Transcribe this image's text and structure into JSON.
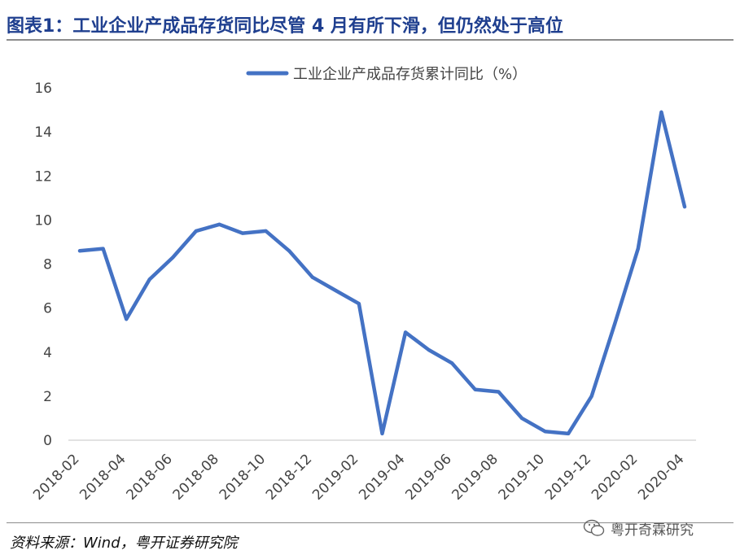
{
  "header": {
    "title": "图表1：工业企业产成品存货同比尽管 4 月有所下滑，但仍然处于高位"
  },
  "footer": {
    "source": "资料来源：Wind，粤开证券研究院",
    "watermark_text": "粤开奇霖研究",
    "watermark_icon": "wechat-icon"
  },
  "colors": {
    "line": "#4472c4",
    "title": "#1f3f8f",
    "axis": "#d9d9d9"
  },
  "chart_data": {
    "type": "line",
    "title": "",
    "xlabel": "",
    "ylabel": "",
    "legend_position": "top-center",
    "grid": false,
    "ylim": [
      0,
      16
    ],
    "yticks": [
      0,
      2,
      4,
      6,
      8,
      10,
      12,
      14,
      16
    ],
    "x": [
      "2018-02",
      "2018-03",
      "2018-04",
      "2018-05",
      "2018-06",
      "2018-07",
      "2018-08",
      "2018-09",
      "2018-10",
      "2018-11",
      "2018-12",
      "2019-01",
      "2019-02",
      "2019-03",
      "2019-04",
      "2019-05",
      "2019-06",
      "2019-07",
      "2019-08",
      "2019-09",
      "2019-10",
      "2019-11",
      "2019-12",
      "2020-01",
      "2020-02",
      "2020-03",
      "2020-04"
    ],
    "xtick_labels": [
      "2018-02",
      "2018-04",
      "2018-06",
      "2018-08",
      "2018-10",
      "2018-12",
      "2019-02",
      "2019-04",
      "2019-06",
      "2019-08",
      "2019-10",
      "2019-12",
      "2020-02",
      "2020-04"
    ],
    "series": [
      {
        "name": "工业企业产成品存货累计同比（%）",
        "values": [
          8.6,
          8.7,
          5.5,
          7.3,
          8.3,
          9.5,
          9.8,
          9.4,
          9.5,
          8.6,
          7.4,
          6.8,
          6.2,
          0.3,
          4.9,
          4.1,
          3.5,
          2.3,
          2.2,
          1.0,
          0.4,
          0.3,
          2.0,
          5.3,
          8.7,
          14.9,
          10.6
        ]
      }
    ]
  }
}
